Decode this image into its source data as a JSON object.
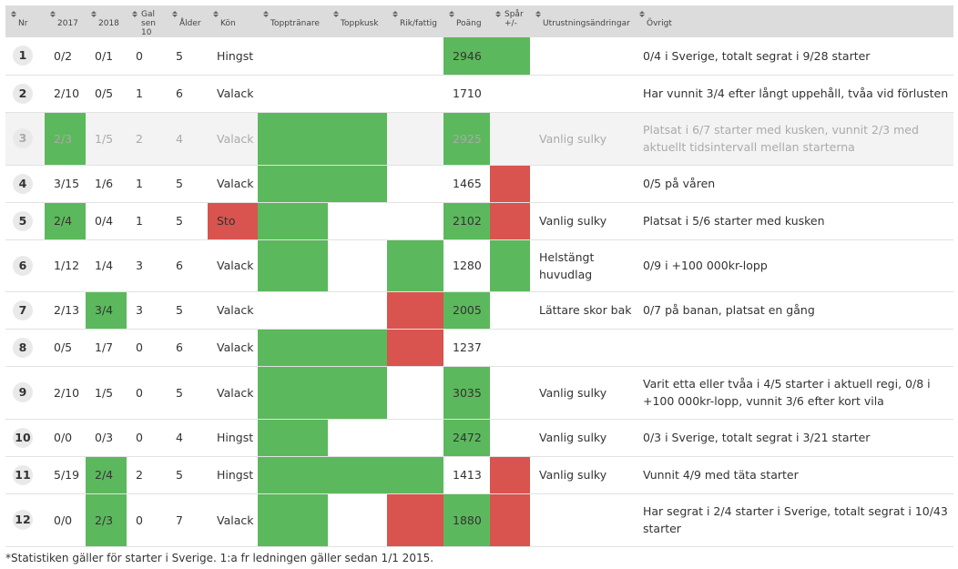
{
  "columns": [
    "Nr",
    "2017",
    "2018",
    "Gal\nsen 10",
    "Ålder",
    "Kön",
    "Topptränare",
    "Toppkusk",
    "Rik/fattig",
    "Poäng",
    "Spår\n+/-",
    "Utrustningsändringar",
    "Övrigt"
  ],
  "colors": {
    "green": "#5cb85c",
    "red": "#d9534f",
    "header": "#dcdcdc"
  },
  "rows": [
    {
      "nr": "1",
      "y2017": "0/2",
      "y2018": "0/1",
      "gal": "0",
      "age": "5",
      "kon": "Hingst",
      "utr": "",
      "ovr": "0/4 i Sverige, totalt segrat i 9/28 starter",
      "hl": {
        "poang": "g",
        "spar": "g"
      },
      "poang": "2946"
    },
    {
      "nr": "2",
      "y2017": "2/10",
      "y2018": "0/5",
      "gal": "1",
      "age": "6",
      "kon": "Valack",
      "utr": "",
      "ovr": "Har vunnit 3/4 efter långt uppehåll, tvåa vid förlusten",
      "hl": {},
      "poang": "1710"
    },
    {
      "nr": "3",
      "y2017": "2/3",
      "y2018": "1/5",
      "gal": "2",
      "age": "4",
      "kon": "Valack",
      "utr": "Vanlig sulky",
      "ovr": "Platsat i 6/7 starter med kusken, vunnit 2/3 med aktuellt tidsintervall mellan starterna",
      "hl": {
        "y2017": "g",
        "tt": "g",
        "tk": "g",
        "poang": "g"
      },
      "poang": "2925",
      "dim": true
    },
    {
      "nr": "4",
      "y2017": "3/15",
      "y2018": "1/6",
      "gal": "1",
      "age": "5",
      "kon": "Valack",
      "utr": "",
      "ovr": "0/5 på våren",
      "hl": {
        "tt": "g",
        "tk": "g",
        "spar": "r"
      },
      "poang": "1465"
    },
    {
      "nr": "5",
      "y2017": "2/4",
      "y2018": "0/4",
      "gal": "1",
      "age": "5",
      "kon": "Sto",
      "utr": "Vanlig sulky",
      "ovr": "Platsat i 5/6 starter med kusken",
      "hl": {
        "y2017": "g",
        "kon": "r",
        "tt": "g",
        "poang": "g",
        "spar": "r"
      },
      "poang": "2102"
    },
    {
      "nr": "6",
      "y2017": "1/12",
      "y2018": "1/4",
      "gal": "3",
      "age": "6",
      "kon": "Valack",
      "utr": "Helstängt huvudlag",
      "ovr": "0/9 i +100 000kr-lopp",
      "hl": {
        "tt": "g",
        "rf": "g",
        "spar": "g"
      },
      "poang": "1280"
    },
    {
      "nr": "7",
      "y2017": "2/13",
      "y2018": "3/4",
      "gal": "3",
      "age": "5",
      "kon": "Valack",
      "utr": "Lättare skor bak",
      "ovr": "0/7 på banan, platsat en gång",
      "hl": {
        "y2018": "g",
        "rf": "r",
        "poang": "g"
      },
      "poang": "2005"
    },
    {
      "nr": "8",
      "y2017": "0/5",
      "y2018": "1/7",
      "gal": "0",
      "age": "6",
      "kon": "Valack",
      "utr": "",
      "ovr": "",
      "hl": {
        "tt": "g",
        "tk": "g",
        "rf": "r"
      },
      "poang": "1237"
    },
    {
      "nr": "9",
      "y2017": "2/10",
      "y2018": "1/5",
      "gal": "0",
      "age": "5",
      "kon": "Valack",
      "utr": "Vanlig sulky",
      "ovr": "Varit etta eller tvåa i 4/5 starter i aktuell regi, 0/8 i +100 000kr-lopp, vunnit 3/6 efter kort vila",
      "hl": {
        "tt": "g",
        "tk": "g",
        "poang": "g"
      },
      "poang": "3035"
    },
    {
      "nr": "10",
      "y2017": "0/0",
      "y2018": "0/3",
      "gal": "0",
      "age": "4",
      "kon": "Hingst",
      "utr": "Vanlig sulky",
      "ovr": "0/3 i Sverige, totalt segrat i 3/21 starter",
      "hl": {
        "tt": "g",
        "poang": "g"
      },
      "poang": "2472"
    },
    {
      "nr": "11",
      "y2017": "5/19",
      "y2018": "2/4",
      "gal": "2",
      "age": "5",
      "kon": "Hingst",
      "utr": "Vanlig sulky",
      "ovr": "Vunnit 4/9 med täta starter",
      "hl": {
        "y2018": "g",
        "tt": "g",
        "tk": "g",
        "rf": "g",
        "spar": "r"
      },
      "poang": "1413"
    },
    {
      "nr": "12",
      "y2017": "0/0",
      "y2018": "2/3",
      "gal": "0",
      "age": "7",
      "kon": "Valack",
      "utr": "",
      "ovr": "Har segrat i 2/4 starter i Sverige, totalt segrat i 10/43 starter",
      "hl": {
        "y2018": "g",
        "tt": "g",
        "rf": "r",
        "poang": "g",
        "spar": "r"
      },
      "poang": "1880"
    }
  ],
  "footnote": "*Statistiken gäller för starter i Sverige. 1:a fr ledningen gäller sedan 1/1 2015."
}
